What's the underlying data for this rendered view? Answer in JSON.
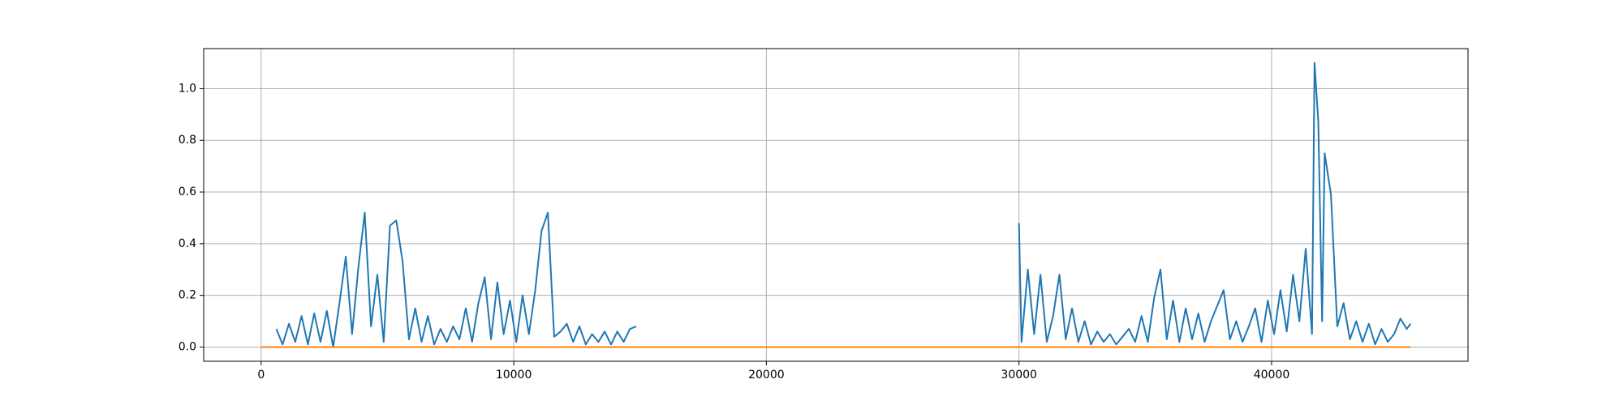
{
  "chart_data": {
    "type": "line",
    "xlim": [
      -2275,
      47775
    ],
    "ylim": [
      -0.055,
      1.155
    ],
    "xticks": [
      0,
      10000,
      20000,
      30000,
      40000
    ],
    "yticks": [
      {
        "value": 0,
        "label": "0.0"
      },
      {
        "value": 0.2,
        "label": "0.2"
      },
      {
        "value": 0.4,
        "label": "0.4"
      },
      {
        "value": 0.6,
        "label": "0.6"
      },
      {
        "value": 0.8,
        "label": "0.8"
      },
      {
        "value": 1.0,
        "label": "1.0"
      }
    ],
    "grid": true,
    "series": [
      {
        "color": "#1f77b4",
        "x": [
          600,
          850,
          1100,
          1350,
          1600,
          1850,
          2100,
          2350,
          2600,
          2850,
          3100,
          3350,
          3600,
          3850,
          4100,
          4350,
          4600,
          4850,
          5100,
          5350,
          5600,
          5850,
          6100,
          6350,
          6600,
          6850,
          7100,
          7350,
          7600,
          7850,
          8100,
          8350,
          8600,
          8850,
          9100,
          9350,
          9600,
          9850,
          10100,
          10350,
          10600,
          10850,
          11100,
          11350,
          11600,
          11850,
          12100,
          12350,
          12600,
          12850,
          13100,
          13350,
          13600,
          13850,
          14100,
          14350,
          14600,
          14850,
          22000,
          30000,
          30100,
          30350,
          30600,
          30850,
          31100,
          31350,
          31600,
          31850,
          32100,
          32350,
          32600,
          32850,
          33100,
          33350,
          33600,
          33850,
          34100,
          34350,
          34600,
          34850,
          35100,
          35350,
          35600,
          35850,
          36100,
          36350,
          36600,
          36850,
          37100,
          37350,
          37600,
          37850,
          38100,
          38350,
          38600,
          38850,
          39100,
          39350,
          39600,
          39850,
          40100,
          40350,
          40600,
          40850,
          41100,
          41350,
          41600,
          41700,
          41850,
          42000,
          42100,
          42350,
          42600,
          42850,
          43100,
          43350,
          43600,
          43850,
          44100,
          44350,
          44600,
          44850,
          45100,
          45350,
          45500
        ],
        "values": [
          0.07,
          0.01,
          0.09,
          0.02,
          0.12,
          0.01,
          0.13,
          0.02,
          0.14,
          0.0,
          0.17,
          0.35,
          0.05,
          0.31,
          0.52,
          0.08,
          0.28,
          0.02,
          0.47,
          0.49,
          0.33,
          0.03,
          0.15,
          0.02,
          0.12,
          0.01,
          0.07,
          0.02,
          0.08,
          0.03,
          0.15,
          0.02,
          0.17,
          0.27,
          0.03,
          0.25,
          0.05,
          0.18,
          0.02,
          0.2,
          0.05,
          0.22,
          0.45,
          0.52,
          0.04,
          0.06,
          0.09,
          0.02,
          0.08,
          0.01,
          0.05,
          0.02,
          0.06,
          0.01,
          0.06,
          0.02,
          0.07,
          0.08,
          null,
          0.48,
          0.02,
          0.3,
          0.05,
          0.28,
          0.02,
          0.12,
          0.28,
          0.03,
          0.15,
          0.02,
          0.1,
          0.01,
          0.06,
          0.02,
          0.05,
          0.01,
          0.04,
          0.07,
          0.02,
          0.12,
          0.02,
          0.19,
          0.3,
          0.03,
          0.18,
          0.02,
          0.15,
          0.03,
          0.13,
          0.02,
          0.1,
          0.16,
          0.22,
          0.03,
          0.1,
          0.02,
          0.08,
          0.15,
          0.02,
          0.18,
          0.05,
          0.22,
          0.06,
          0.28,
          0.1,
          0.38,
          0.05,
          1.1,
          0.87,
          0.1,
          0.75,
          0.59,
          0.08,
          0.17,
          0.03,
          0.1,
          0.02,
          0.09,
          0.01,
          0.07,
          0.02,
          0.05,
          0.11,
          0.07,
          0.09
        ]
      },
      {
        "color": "#ff7f0e",
        "x": [
          0,
          45500
        ],
        "values": [
          0,
          0
        ]
      }
    ]
  }
}
